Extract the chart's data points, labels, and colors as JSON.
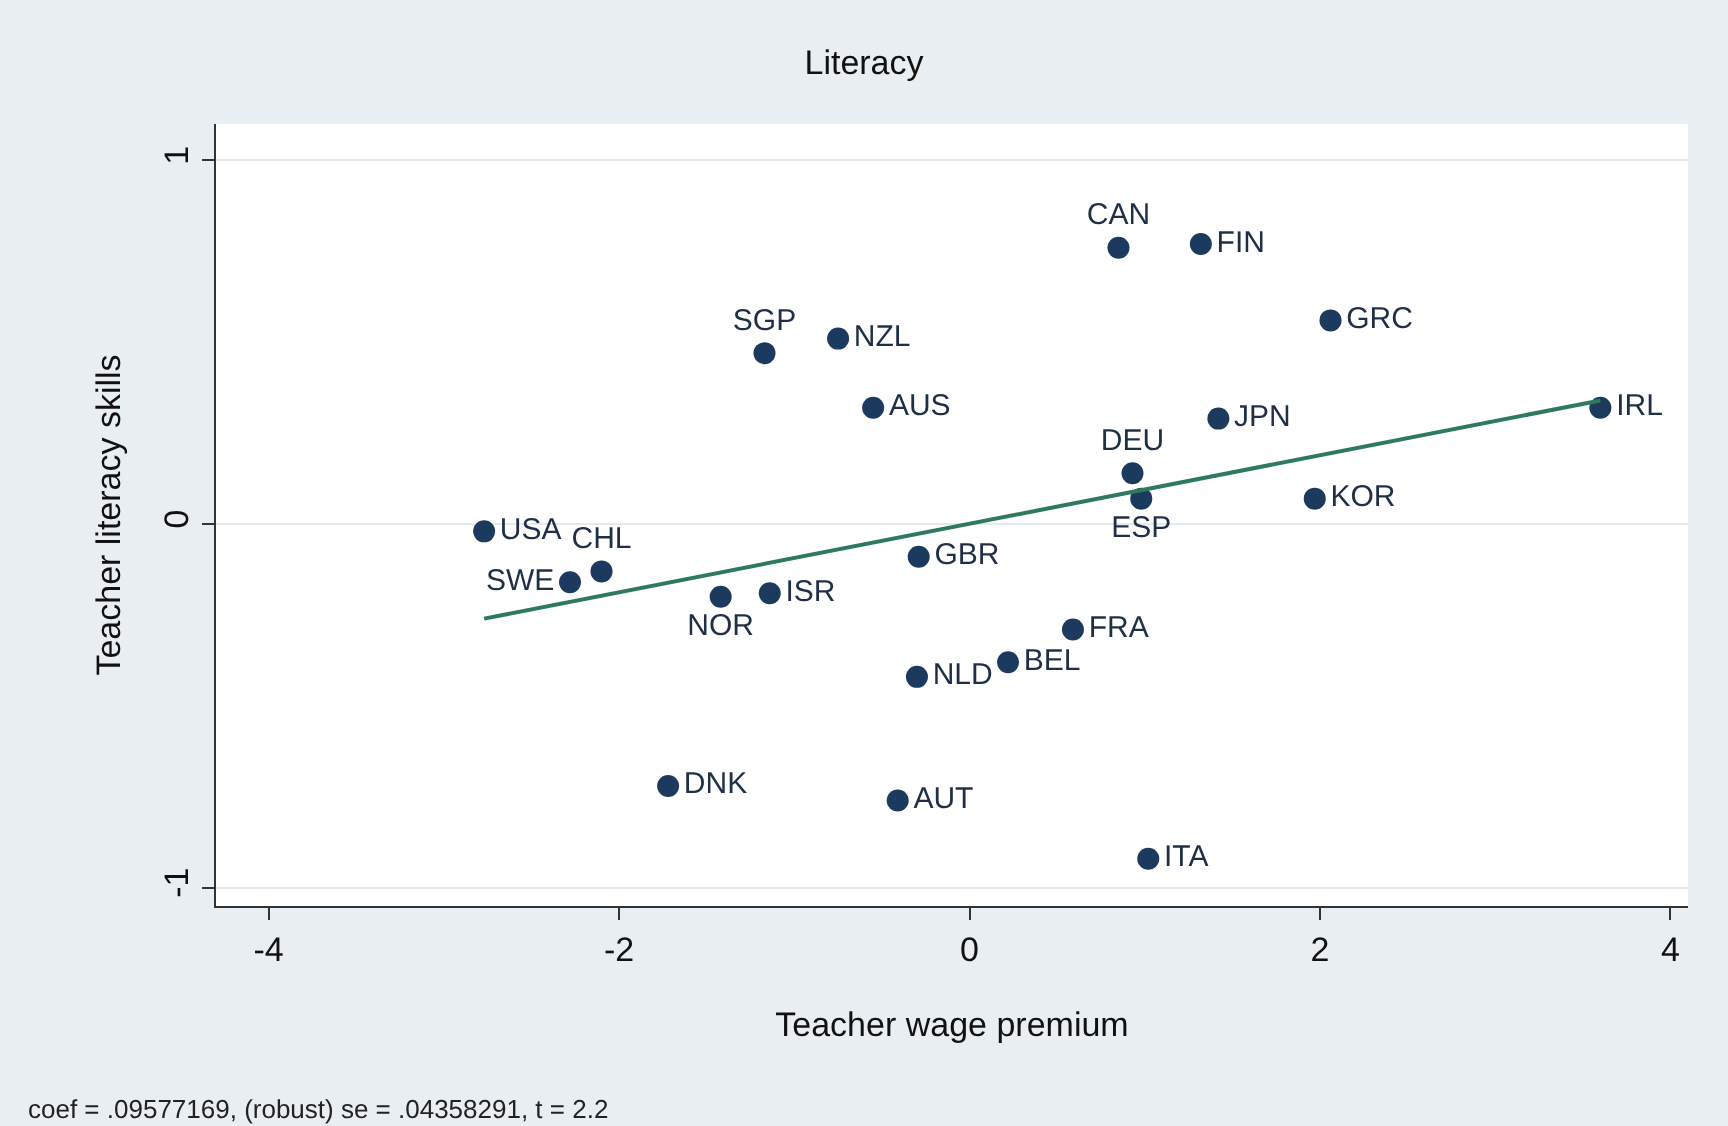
{
  "chart_data": {
    "type": "scatter",
    "title": "Literacy",
    "xlabel": "Teacher wage premium",
    "ylabel": "Teacher literacy skills",
    "x": [
      -2.77,
      -2.28,
      -2.1,
      -1.72,
      -1.42,
      -1.14,
      -1.17,
      -0.75,
      -0.55,
      -0.41,
      -0.3,
      -0.29,
      0.22,
      0.59,
      1.02,
      0.85,
      1.32,
      0.93,
      0.98,
      1.42,
      2.06,
      1.97,
      3.6
    ],
    "series": [
      {
        "color": "#1b3a5e",
        "values": [
          -0.02,
          -0.16,
          -0.13,
          -0.72,
          -0.2,
          -0.19,
          0.47,
          0.51,
          0.32,
          -0.76,
          -0.42,
          -0.09,
          -0.38,
          -0.29,
          -0.92,
          0.76,
          0.77,
          0.14,
          0.07,
          0.29,
          0.56,
          0.07,
          0.32
        ],
        "value_labels": [
          "USA",
          "SWE",
          "CHL",
          "DNK",
          "NOR",
          "ISR",
          "SGP",
          "NZL",
          "AUS",
          "AUT",
          "NLD",
          "GBR",
          "BEL",
          "FRA",
          "ITA",
          "CAN",
          "FIN",
          "DEU",
          "ESP",
          "JPN",
          "GRC",
          "KOR",
          "IRL"
        ]
      },
      {
        "type": "line",
        "marker": "none",
        "color": "#2e7a5c",
        "x": [
          -2.77,
          3.6
        ],
        "values": [
          -0.26,
          0.34
        ]
      }
    ],
    "xlim": [
      -4.3,
      4.1
    ],
    "ylim": [
      -1.05,
      1.1
    ],
    "xticks": [
      -4,
      -2,
      0,
      2,
      4
    ],
    "yticks": [
      -1,
      0,
      1
    ],
    "grid": "y",
    "marker": "circle",
    "annotations": [
      "coef = .09577169, (robust) se = .04358291, t = 2.2"
    ]
  }
}
